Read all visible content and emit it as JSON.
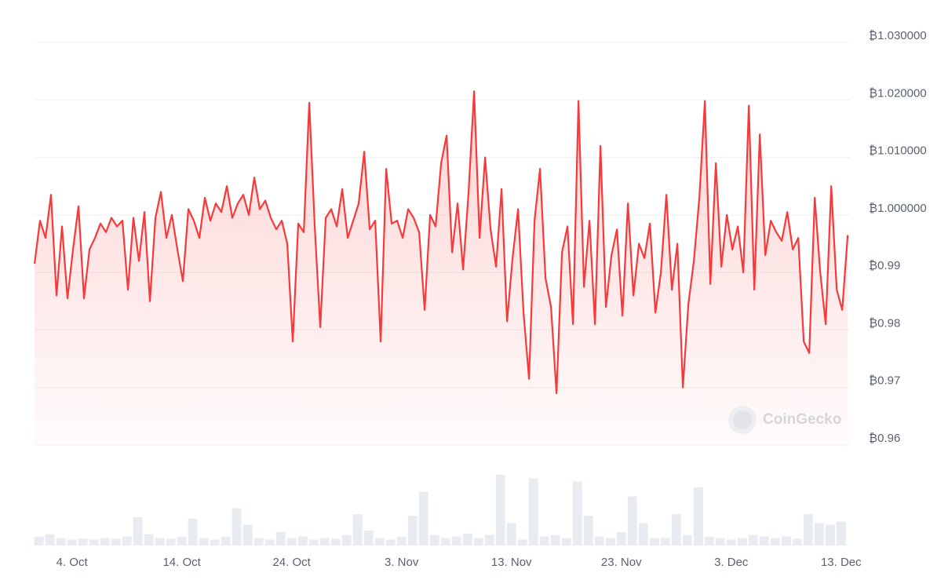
{
  "chart_data": [
    {
      "type": "line",
      "color": "#f6393a",
      "area": true,
      "grid": true,
      "watermark": "CoinGecko",
      "xlim": [
        0.6,
        74.8
      ],
      "xticks": [
        {
          "value": 4,
          "label": "4. Oct"
        },
        {
          "value": 14,
          "label": "14. Oct"
        },
        {
          "value": 24,
          "label": "24. Oct"
        },
        {
          "value": 34,
          "label": "3. Nov"
        },
        {
          "value": 44,
          "label": "13. Nov"
        },
        {
          "value": 54,
          "label": "23. Nov"
        },
        {
          "value": 64,
          "label": "3. Dec"
        },
        {
          "value": 74,
          "label": "13. Dec"
        }
      ],
      "ylim": [
        0.96,
        1.03
      ],
      "yticks": [
        {
          "value": 0.96,
          "label": "₿0.96"
        },
        {
          "value": 0.97,
          "label": "₿0.97"
        },
        {
          "value": 0.98,
          "label": "₿0.98"
        },
        {
          "value": 0.99,
          "label": "₿0.99"
        },
        {
          "value": 1.0,
          "label": "₿1.000000"
        },
        {
          "value": 1.01,
          "label": "₿1.010000"
        },
        {
          "value": 1.02,
          "label": "₿1.020000"
        },
        {
          "value": 1.03,
          "label": "₿1.030000"
        }
      ],
      "x": [
        0.6,
        1.1,
        1.6,
        2.1,
        2.6,
        3.1,
        3.6,
        4.1,
        4.6,
        5.1,
        5.6,
        6.1,
        6.6,
        7.1,
        7.6,
        8.1,
        8.6,
        9.1,
        9.6,
        10.1,
        10.6,
        11.1,
        11.6,
        12.1,
        12.6,
        13.1,
        13.6,
        14.1,
        14.6,
        15.1,
        15.6,
        16.1,
        16.6,
        17.1,
        17.6,
        18.1,
        18.6,
        19.1,
        19.6,
        20.1,
        20.6,
        21.1,
        21.6,
        22.1,
        22.6,
        23.1,
        23.6,
        24.1,
        24.6,
        25.1,
        25.6,
        26.1,
        26.6,
        27.1,
        27.6,
        28.1,
        28.6,
        29.1,
        29.6,
        30.1,
        30.6,
        31.1,
        31.6,
        32.1,
        32.6,
        33.1,
        33.6,
        34.1,
        34.6,
        35.1,
        35.6,
        36.1,
        36.6,
        37.1,
        37.6,
        38.1,
        38.6,
        39.1,
        39.6,
        40.1,
        40.6,
        41.1,
        41.6,
        42.1,
        42.6,
        43.1,
        43.6,
        44.1,
        44.6,
        45.1,
        45.6,
        46.1,
        46.6,
        47.1,
        47.6,
        48.1,
        48.6,
        49.1,
        49.6,
        50.1,
        50.6,
        51.1,
        51.6,
        52.1,
        52.6,
        53.1,
        53.6,
        54.1,
        54.6,
        55.1,
        55.6,
        56.1,
        56.6,
        57.1,
        57.6,
        58.1,
        58.6,
        59.1,
        59.6,
        60.1,
        60.6,
        61.1,
        61.6,
        62.1,
        62.6,
        63.1,
        63.6,
        64.1,
        64.6,
        65.1,
        65.6,
        66.1,
        66.6,
        67.1,
        67.6,
        68.1,
        68.6,
        69.1,
        69.6,
        70.1,
        70.6,
        71.1,
        71.6,
        72.1,
        72.6,
        73.1,
        73.6,
        74.1,
        74.6
      ],
      "values": [
        0.9915,
        0.999,
        0.996,
        1.0035,
        0.986,
        0.998,
        0.9855,
        0.994,
        1.0015,
        0.9855,
        0.994,
        0.996,
        0.9985,
        0.997,
        0.9995,
        0.998,
        0.999,
        0.987,
        0.9995,
        0.992,
        1.0005,
        0.985,
        0.9995,
        1.004,
        0.996,
        1.0,
        0.994,
        0.9885,
        1.001,
        0.999,
        0.996,
        1.003,
        0.999,
        1.002,
        1.0005,
        1.005,
        0.9995,
        1.002,
        1.0035,
        1.0,
        1.0065,
        1.001,
        1.0025,
        0.9995,
        0.9975,
        0.999,
        0.995,
        0.978,
        0.9985,
        0.997,
        1.0195,
        0.998,
        0.9805,
        0.9995,
        1.001,
        0.998,
        1.0045,
        0.996,
        0.999,
        1.002,
        1.011,
        0.9975,
        0.999,
        0.978,
        1.008,
        0.9985,
        0.999,
        0.996,
        1.001,
        0.9995,
        0.997,
        0.9835,
        1.0,
        0.998,
        1.009,
        1.0138,
        0.9935,
        1.002,
        0.9905,
        1.004,
        1.0215,
        0.996,
        1.01,
        0.9975,
        0.991,
        1.0045,
        0.9815,
        0.9925,
        1.001,
        0.983,
        0.9715,
        0.999,
        1.008,
        0.989,
        0.984,
        0.969,
        0.9935,
        0.998,
        0.981,
        1.0198,
        0.9875,
        0.999,
        0.981,
        1.012,
        0.984,
        0.993,
        0.9975,
        0.9825,
        1.002,
        0.986,
        0.995,
        0.9925,
        0.9985,
        0.983,
        0.99,
        1.0035,
        0.987,
        0.995,
        0.97,
        0.9845,
        0.992,
        1.003,
        1.0198,
        0.988,
        1.009,
        0.991,
        1.0,
        0.994,
        0.998,
        0.99,
        1.019,
        0.987,
        1.014,
        0.993,
        0.999,
        0.997,
        0.9955,
        1.0005,
        0.994,
        0.996,
        0.978,
        0.976,
        1.003,
        0.99,
        0.981,
        1.005,
        0.987,
        0.9835,
        0.9965
      ]
    },
    {
      "type": "bar",
      "color": "#e8ebf0",
      "ylim": [
        0,
        100
      ],
      "x": [
        1,
        2,
        3,
        4,
        5,
        6,
        7,
        8,
        9,
        10,
        11,
        12,
        13,
        14,
        15,
        16,
        17,
        18,
        19,
        20,
        21,
        22,
        23,
        24,
        25,
        26,
        27,
        28,
        29,
        30,
        31,
        32,
        33,
        34,
        35,
        36,
        37,
        38,
        39,
        40,
        41,
        42,
        43,
        44,
        45,
        46,
        47,
        48,
        49,
        50,
        51,
        52,
        53,
        54,
        55,
        56,
        57,
        58,
        59,
        60,
        61,
        62,
        63,
        64,
        65,
        66,
        67,
        68,
        69,
        70,
        71,
        72,
        73,
        74
      ],
      "values": [
        12,
        15,
        10,
        8,
        9,
        8,
        10,
        9,
        12,
        38,
        15,
        10,
        9,
        12,
        36,
        10,
        8,
        12,
        50,
        28,
        10,
        8,
        18,
        10,
        12,
        8,
        10,
        9,
        14,
        42,
        20,
        10,
        8,
        12,
        40,
        72,
        14,
        10,
        12,
        16,
        10,
        14,
        95,
        30,
        8,
        90,
        12,
        14,
        10,
        86,
        40,
        12,
        10,
        18,
        66,
        30,
        10,
        10,
        42,
        14,
        78,
        12,
        10,
        8,
        10,
        14,
        12,
        10,
        12,
        9,
        42,
        30,
        28,
        32
      ]
    }
  ]
}
